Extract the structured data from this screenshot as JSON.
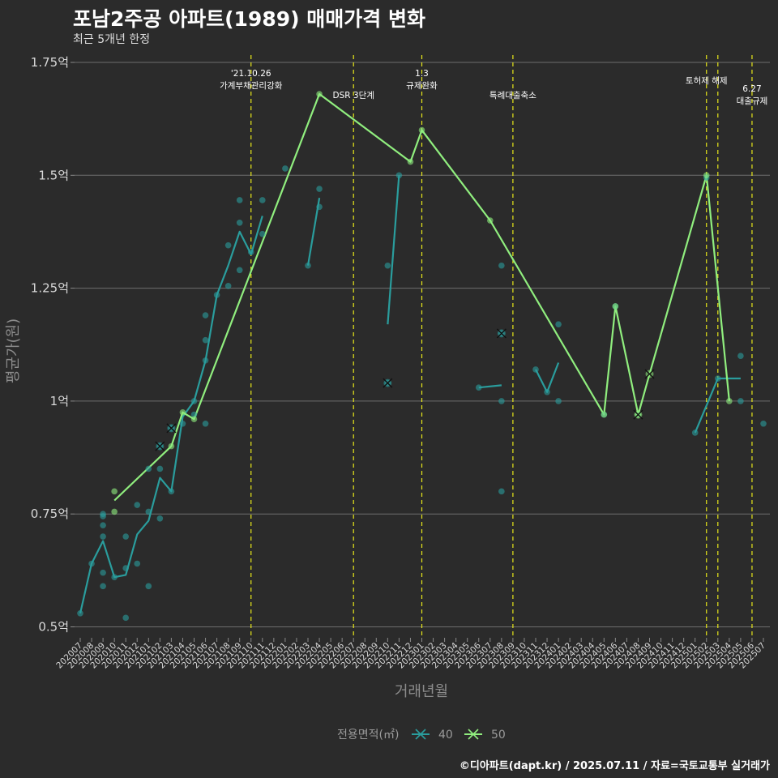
{
  "title": "포남2주공 아파트(1989) 매매가격 변화",
  "subtitle": "최근 5개년 한정",
  "caption": "©디아파트(dapt.kr) / 2025.07.11 / 자료=국토교통부 실거래가",
  "chart_data": {
    "type": "line",
    "xlabel": "거래년월",
    "ylabel": "평균가(원)",
    "ylim": [
      0.45,
      1.77
    ],
    "yticks": [
      {
        "value": 0.5,
        "label": "0.5억"
      },
      {
        "value": 0.75,
        "label": "0.75억"
      },
      {
        "value": 1.0,
        "label": "1억"
      },
      {
        "value": 1.25,
        "label": "1.25억"
      },
      {
        "value": 1.5,
        "label": "1.5억"
      },
      {
        "value": 1.75,
        "label": "1.75억"
      }
    ],
    "categories": [
      "202007",
      "202008",
      "202009",
      "202010",
      "202011",
      "202012",
      "202101",
      "202102",
      "202103",
      "202104",
      "202105",
      "202106",
      "202107",
      "202108",
      "202109",
      "202110",
      "202111",
      "202112",
      "202201",
      "202202",
      "202203",
      "202204",
      "202205",
      "202206",
      "202207",
      "202208",
      "202209",
      "202210",
      "202211",
      "202212",
      "202301",
      "202302",
      "202303",
      "202304",
      "202305",
      "202306",
      "202307",
      "202308",
      "202309",
      "202310",
      "202311",
      "202312",
      "202401",
      "202402",
      "202403",
      "202404",
      "202405",
      "202406",
      "202407",
      "202408",
      "202409",
      "202410",
      "202411",
      "202412",
      "202501",
      "202502",
      "202503",
      "202504",
      "202505",
      "202506",
      "202507"
    ],
    "annotations": [
      {
        "x": "202110",
        "lines": [
          "'21.10.26",
          "가계부채관리강화"
        ],
        "align": "top"
      },
      {
        "x": "202207",
        "lines": [
          "DSR 3단계"
        ],
        "align": "low"
      },
      {
        "x": "202301",
        "lines": [
          "1.3",
          "규제완화"
        ],
        "align": "top"
      },
      {
        "x": "202309",
        "lines": [
          "특례대출축소"
        ],
        "align": "low"
      },
      {
        "x": "202502",
        "lines": [
          "토허제 해제"
        ],
        "align": "mid"
      },
      {
        "x": "202503",
        "lines": [],
        "align": "none"
      },
      {
        "x": "202506",
        "lines": [
          "6.27",
          "대출규제"
        ],
        "align": "lower"
      }
    ],
    "legend_title": "전용면적(㎡)",
    "series": [
      {
        "name": "40",
        "color": "#2a9d9d",
        "line": [
          {
            "segment": [
              [
                "202007",
                0.53
              ],
              [
                "202008",
                0.64
              ],
              [
                "202009",
                0.69
              ],
              [
                "202010",
                0.61
              ],
              [
                "202011",
                0.615
              ],
              [
                "202012",
                0.705
              ],
              [
                "202101",
                0.735
              ],
              [
                "202102",
                0.83
              ],
              [
                "202103",
                0.8
              ],
              [
                "202104",
                0.965
              ],
              [
                "202105",
                1.0
              ],
              [
                "202106",
                1.09
              ],
              [
                "202107",
                1.235
              ],
              [
                "202108",
                1.3
              ],
              [
                "202109",
                1.375
              ],
              [
                "202110",
                1.325
              ],
              [
                "202111",
                1.41
              ]
            ]
          },
          {
            "segment": [
              [
                "202203",
                1.3
              ],
              [
                "202204",
                1.45
              ]
            ]
          },
          {
            "segment": [
              [
                "202210",
                1.17
              ],
              [
                "202211",
                1.5
              ]
            ]
          },
          {
            "segment": [
              [
                "202306",
                1.03
              ],
              [
                "202308",
                1.035
              ]
            ]
          },
          {
            "segment": [
              [
                "202311",
                1.07
              ],
              [
                "202312",
                1.02
              ],
              [
                "202401",
                1.085
              ]
            ]
          },
          {
            "segment": [
              [
                "202501",
                0.93
              ],
              [
                "202503",
                1.05
              ],
              [
                "202505",
                1.05
              ]
            ]
          }
        ],
        "points": [
          [
            "202007",
            0.53
          ],
          [
            "202008",
            0.64
          ],
          [
            "202009",
            0.59
          ],
          [
            "202009",
            0.62
          ],
          [
            "202009",
            0.7
          ],
          [
            "202009",
            0.725
          ],
          [
            "202009",
            0.745
          ],
          [
            "202009",
            0.75
          ],
          [
            "202010",
            0.61
          ],
          [
            "202011",
            0.52
          ],
          [
            "202011",
            0.7
          ],
          [
            "202011",
            0.63
          ],
          [
            "202012",
            0.77
          ],
          [
            "202012",
            0.64
          ],
          [
            "202101",
            0.85
          ],
          [
            "202101",
            0.755
          ],
          [
            "202101",
            0.59
          ],
          [
            "202102",
            0.85
          ],
          [
            "202102",
            0.74
          ],
          [
            "202102",
            0.9
          ],
          [
            "202103",
            0.8
          ],
          [
            "202103",
            0.94
          ],
          [
            "202104",
            0.95
          ],
          [
            "202105",
            0.97
          ],
          [
            "202105",
            1.0
          ],
          [
            "202106",
            0.95
          ],
          [
            "202106",
            1.135
          ],
          [
            "202106",
            1.19
          ],
          [
            "202106",
            1.09
          ],
          [
            "202107",
            1.235
          ],
          [
            "202108",
            1.255
          ],
          [
            "202108",
            1.345
          ],
          [
            "202109",
            1.29
          ],
          [
            "202109",
            1.395
          ],
          [
            "202109",
            1.445
          ],
          [
            "202110",
            1.33
          ],
          [
            "202111",
            1.37
          ],
          [
            "202111",
            1.445
          ],
          [
            "202201",
            1.515
          ],
          [
            "202203",
            1.3
          ],
          [
            "202204",
            1.43
          ],
          [
            "202204",
            1.47
          ],
          [
            "202210",
            1.3
          ],
          [
            "202210",
            1.04
          ],
          [
            "202211",
            1.5
          ],
          [
            "202306",
            1.03
          ],
          [
            "202308",
            1.3
          ],
          [
            "202308",
            1.0
          ],
          [
            "202308",
            0.8
          ],
          [
            "202308",
            1.15
          ],
          [
            "202311",
            1.07
          ],
          [
            "202312",
            1.02
          ],
          [
            "202401",
            1.17
          ],
          [
            "202401",
            1.0
          ],
          [
            "202405",
            0.97
          ],
          [
            "202406",
            1.21
          ],
          [
            "202408",
            0.97
          ],
          [
            "202501",
            0.93
          ],
          [
            "202502",
            1.495
          ],
          [
            "202503",
            1.05
          ],
          [
            "202505",
            1.1
          ],
          [
            "202505",
            1.0
          ],
          [
            "202507",
            0.95
          ]
        ],
        "crosses": [
          [
            "202102",
            0.9
          ],
          [
            "202103",
            0.94
          ],
          [
            "202210",
            1.04
          ],
          [
            "202308",
            1.15
          ]
        ]
      },
      {
        "name": "50",
        "color": "#90ee7e",
        "line": [
          {
            "segment": [
              [
                "202010",
                0.78
              ],
              [
                "202103",
                0.9
              ],
              [
                "202104",
                0.975
              ],
              [
                "202105",
                0.96
              ],
              [
                "202204",
                1.68
              ],
              [
                "202212",
                1.53
              ],
              [
                "202301",
                1.6
              ],
              [
                "202307",
                1.4
              ],
              [
                "202405",
                0.97
              ],
              [
                "202406",
                1.21
              ],
              [
                "202408",
                0.97
              ],
              [
                "202409",
                1.06
              ],
              [
                "202502",
                1.5
              ],
              [
                "202504",
                1.0
              ]
            ]
          }
        ],
        "points": [
          [
            "202010",
            0.8
          ],
          [
            "202010",
            0.755
          ],
          [
            "202103",
            0.9
          ],
          [
            "202104",
            0.975
          ],
          [
            "202105",
            0.96
          ],
          [
            "202204",
            1.68
          ],
          [
            "202212",
            1.53
          ],
          [
            "202301",
            1.6
          ],
          [
            "202307",
            1.4
          ],
          [
            "202405",
            0.97
          ],
          [
            "202406",
            1.21
          ],
          [
            "202408",
            0.97
          ],
          [
            "202502",
            1.5
          ],
          [
            "202504",
            1.0
          ]
        ],
        "crosses": [
          [
            "202408",
            0.97
          ],
          [
            "202409",
            1.06
          ]
        ]
      }
    ]
  }
}
